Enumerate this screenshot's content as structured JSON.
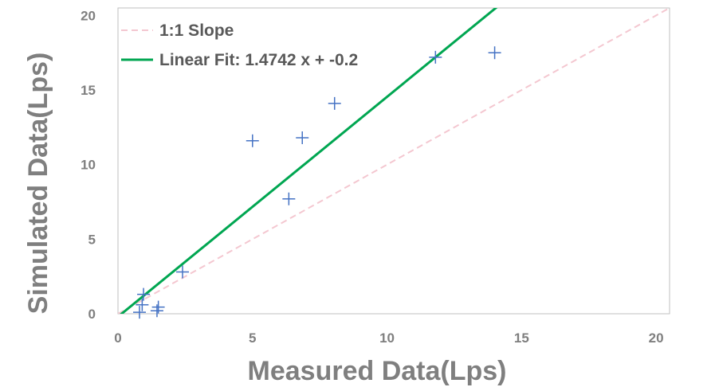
{
  "chart_data": {
    "type": "scatter",
    "xlabel": "Measured Data(Lps)",
    "ylabel": "Simulated Data(Lps)",
    "xlim": [
      0,
      20.5
    ],
    "ylim": [
      0,
      20.5
    ],
    "x_ticks": [
      0,
      5,
      10,
      15,
      20
    ],
    "y_ticks": [
      0,
      5,
      10,
      15,
      20
    ],
    "grid": false,
    "legend_position": "top-left",
    "points": [
      {
        "x": 0.8,
        "y": 0.1
      },
      {
        "x": 0.9,
        "y": 0.6
      },
      {
        "x": 0.95,
        "y": 1.3
      },
      {
        "x": 1.45,
        "y": 0.2
      },
      {
        "x": 1.5,
        "y": 0.45
      },
      {
        "x": 2.4,
        "y": 2.8
      },
      {
        "x": 5.0,
        "y": 11.6
      },
      {
        "x": 6.35,
        "y": 7.7
      },
      {
        "x": 6.85,
        "y": 11.8
      },
      {
        "x": 8.05,
        "y": 14.1
      },
      {
        "x": 11.8,
        "y": 17.2
      },
      {
        "x": 14.0,
        "y": 17.5
      }
    ],
    "lines": [
      {
        "name": "1:1 Slope",
        "slope": 1,
        "intercept": 0,
        "color": "#f4c7d0",
        "dashed": true
      },
      {
        "name": "Linear Fit: 1.4742 x + -0.2",
        "slope": 1.4742,
        "intercept": -0.2,
        "color": "#00a651",
        "dashed": false
      }
    ],
    "colors": {
      "points": "#4472c4",
      "axis": "#bfbfbf",
      "text": "#7f7f7f"
    }
  }
}
